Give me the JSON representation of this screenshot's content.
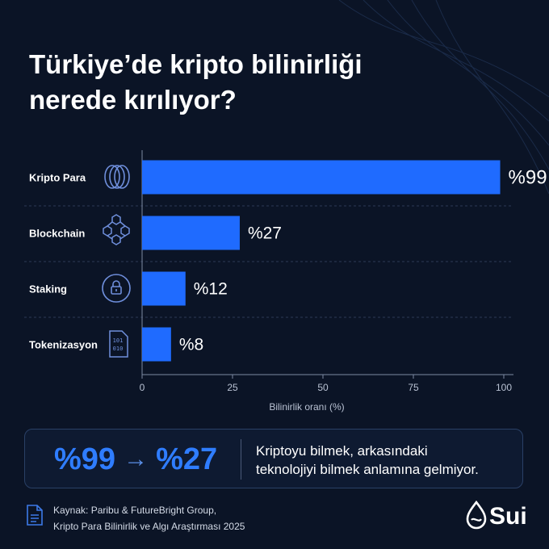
{
  "title": {
    "line1": "Türkiye’de kripto bilinirliği",
    "line2": "nerede kırılıyor?"
  },
  "chart_data": {
    "type": "bar",
    "orientation": "horizontal",
    "categories": [
      "Kripto Para",
      "Blockchain",
      "Staking",
      "Tokenizasyon"
    ],
    "values": [
      99,
      27,
      12,
      8
    ],
    "value_labels": [
      "%99",
      "%27",
      "%12",
      "%8"
    ],
    "category_icons": [
      "coins-icon",
      "blocks-icon",
      "lock-icon",
      "binary-file-icon"
    ],
    "xlabel": "Bilinirlik oranı (%)",
    "xlim": [
      0,
      100
    ],
    "xticks": [
      0,
      25,
      50,
      75,
      100
    ],
    "bar_color": "#1f6bff",
    "grid": false
  },
  "callout": {
    "from": "%99",
    "arrow": "→",
    "to": "%27",
    "message_line1": "Kriptoyu bilmek, arkasındaki",
    "message_line2": "teknolojiyi bilmek anlamına gelmiyor."
  },
  "source": {
    "icon": "document-icon",
    "line1": "Kaynak: Paribu & FutureBright Group,",
    "line2": "Kripto Para Bilinirlik ve Algı Araştırması 2025"
  },
  "brand": {
    "name": "Sui",
    "icon": "sui-drop-icon"
  },
  "colors": {
    "background": "#0b1426",
    "accent": "#2f7dff",
    "bar": "#1f6bff"
  }
}
